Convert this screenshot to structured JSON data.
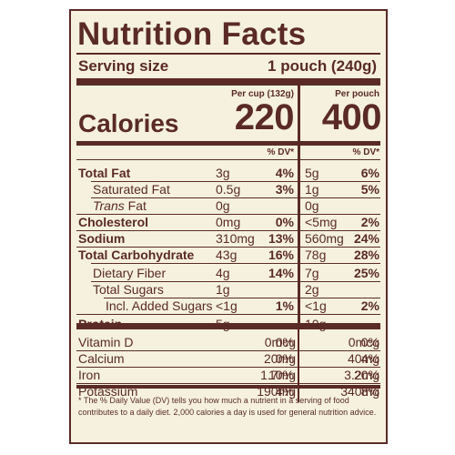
{
  "title": "Nutrition Facts",
  "serving": {
    "label": "Serving size",
    "value": "1 pouch (240g)"
  },
  "columns": {
    "col1_header": "Per cup (132g)",
    "col2_header": "Per pouch"
  },
  "calories": {
    "label": "Calories",
    "col1": "220",
    "col2": "400"
  },
  "dv_header": "% DV*",
  "nutrients": [
    {
      "name": "Total Fat",
      "bold": true,
      "v1": "3g",
      "p1": "4%",
      "v2": "5g",
      "p2": "6%"
    },
    {
      "name": "Saturated Fat",
      "bold": false,
      "v1": "0.5g",
      "p1": "3%",
      "v2": "1g",
      "p2": "5%"
    },
    {
      "name": "Trans Fat",
      "bold": false,
      "v1": "0g",
      "p1": "",
      "v2": "0g",
      "p2": ""
    },
    {
      "name": "Cholesterol",
      "bold": true,
      "v1": "0mg",
      "p1": "0%",
      "v2": "<5mg",
      "p2": "2%"
    },
    {
      "name": "Sodium",
      "bold": true,
      "v1": "310mg",
      "p1": "13%",
      "v2": "560mg",
      "p2": "24%"
    },
    {
      "name": "Total Carbohydrate",
      "bold": true,
      "v1": "43g",
      "p1": "16%",
      "v2": "78g",
      "p2": "28%"
    },
    {
      "name": "Dietary Fiber",
      "bold": false,
      "v1": "4g",
      "p1": "14%",
      "v2": "7g",
      "p2": "25%"
    },
    {
      "name": "Total Sugars",
      "bold": false,
      "v1": "1g",
      "p1": "",
      "v2": "2g",
      "p2": ""
    },
    {
      "name": "Incl. Added Sugars",
      "bold": false,
      "v1": "<1g",
      "p1": "1%",
      "v2": "<1g",
      "p2": "2%"
    },
    {
      "name": "Protein",
      "bold": true,
      "v1": "5g",
      "p1": "",
      "v2": "10g",
      "p2": ""
    }
  ],
  "vitamins": [
    {
      "name": "Vitamin D",
      "v1": "0mcg",
      "p1": "0%",
      "v2": "0mcg",
      "p2": "0%"
    },
    {
      "name": "Calcium",
      "v1": "20mg",
      "p1": "0%",
      "v2": "40mg",
      "p2": "4%"
    },
    {
      "name": "Iron",
      "v1": "1.7mg",
      "p1": "10%",
      "v2": "3.2mg",
      "p2": "20%"
    },
    {
      "name": "Potassium",
      "v1": "190mg",
      "p1": "4%",
      "v2": "340mg",
      "p2": "8%"
    }
  ],
  "footnote": "* The % Daily Value (DV) tells you how much a nutrient in a serving of food contributes to a daily diet. 2,000 calories a day is used for general nutrition advice.",
  "colors": {
    "ink": "#5a2a27",
    "background": "#f6f1df"
  }
}
